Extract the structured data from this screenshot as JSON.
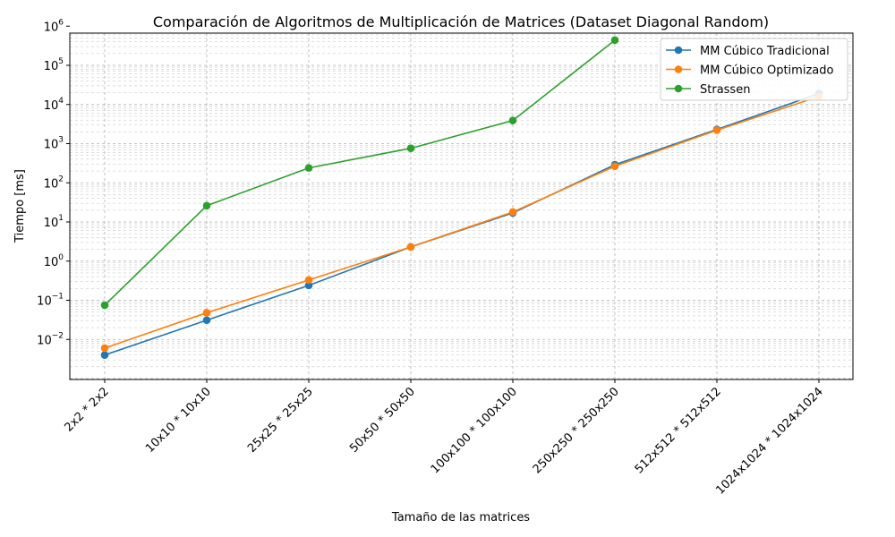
{
  "chart_data": {
    "type": "line",
    "title": "Comparación de Algoritmos de Multiplicación de Matrices (Dataset Diagonal Random)",
    "xlabel": "Tamaño de las matrices",
    "ylabel": "Tiempo [ms]",
    "yscale": "log",
    "ylim": [
      0.0015,
      1000000
    ],
    "grid": "both (major and minor, dashed)",
    "legend_position": "top-right",
    "categories": [
      "2x2 * 2x2",
      "10x10 * 10x10",
      "25x25 * 25x25",
      "50x50 * 50x50",
      "100x100 * 100x100",
      "250x250 * 250x250",
      "512x512 * 512x512",
      "1024x1024 * 1024x1024"
    ],
    "y_ticks": [
      {
        "base": "10",
        "exp": "−2",
        "value": 0.01
      },
      {
        "base": "10",
        "exp": "−1",
        "value": 0.1
      },
      {
        "base": "10",
        "exp": "0",
        "value": 1
      },
      {
        "base": "10",
        "exp": "1",
        "value": 10
      },
      {
        "base": "10",
        "exp": "2",
        "value": 100
      },
      {
        "base": "10",
        "exp": "3",
        "value": 1000
      },
      {
        "base": "10",
        "exp": "4",
        "value": 10000
      },
      {
        "base": "10",
        "exp": "5",
        "value": 100000
      },
      {
        "base": "10",
        "exp": "6",
        "value": 1000000
      }
    ],
    "series": [
      {
        "name": "MM Cúbico Tradicional",
        "color": "#1f77b4",
        "values": [
          0.004,
          0.031,
          0.24,
          2.3,
          17,
          290,
          2300,
          19000
        ]
      },
      {
        "name": "MM Cúbico Optimizado",
        "color": "#ff7f0e",
        "values": [
          0.006,
          0.048,
          0.33,
          2.3,
          18,
          265,
          2200,
          16000
        ]
      },
      {
        "name": "Strassen",
        "color": "#2ca02c",
        "values": [
          0.075,
          26,
          240,
          760,
          3900,
          440000,
          null,
          null
        ]
      }
    ]
  }
}
